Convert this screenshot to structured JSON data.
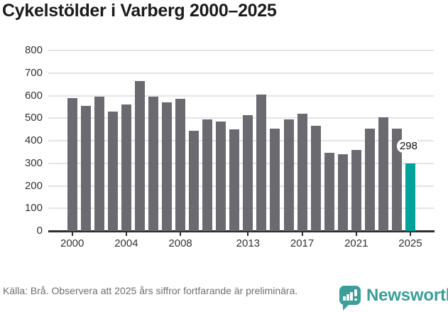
{
  "title": "Cykelstölder i Varberg 2000–2025",
  "chart_data": {
    "type": "bar",
    "title": "Cykelstölder i Varberg 2000–2025",
    "categories": [
      2000,
      2001,
      2002,
      2003,
      2004,
      2005,
      2006,
      2007,
      2008,
      2009,
      2010,
      2011,
      2012,
      2013,
      2014,
      2015,
      2016,
      2017,
      2018,
      2019,
      2020,
      2021,
      2022,
      2023,
      2024,
      2025
    ],
    "values": [
      590,
      555,
      595,
      530,
      560,
      665,
      595,
      570,
      585,
      445,
      495,
      485,
      450,
      515,
      605,
      455,
      495,
      520,
      465,
      345,
      340,
      360,
      455,
      505,
      455,
      298
    ],
    "xlabel": "",
    "ylabel": "",
    "ylim": [
      0,
      800
    ],
    "ytick_step": 100,
    "xtick_labels": [
      "2000",
      "2004",
      "2008",
      "2013",
      "2017",
      "2021",
      "2025"
    ],
    "grid": true,
    "legend_position": "none",
    "highlight": {
      "category": 2025,
      "value_label": "298"
    },
    "colors": {
      "bar": "#6c6a71",
      "highlight": "#00a29a",
      "grid": "#e4e4e4",
      "axis": "#2e2e2e",
      "tick_text": "#333333"
    }
  },
  "footer": {
    "source_text": "Källa: Brå. Observera att 2025 års siffror fortfarande är preliminära.",
    "brand": "Newsworthy",
    "brand_color": "#3b9e98",
    "logo_icon": "speech-bubble-bar-chart-icon"
  }
}
